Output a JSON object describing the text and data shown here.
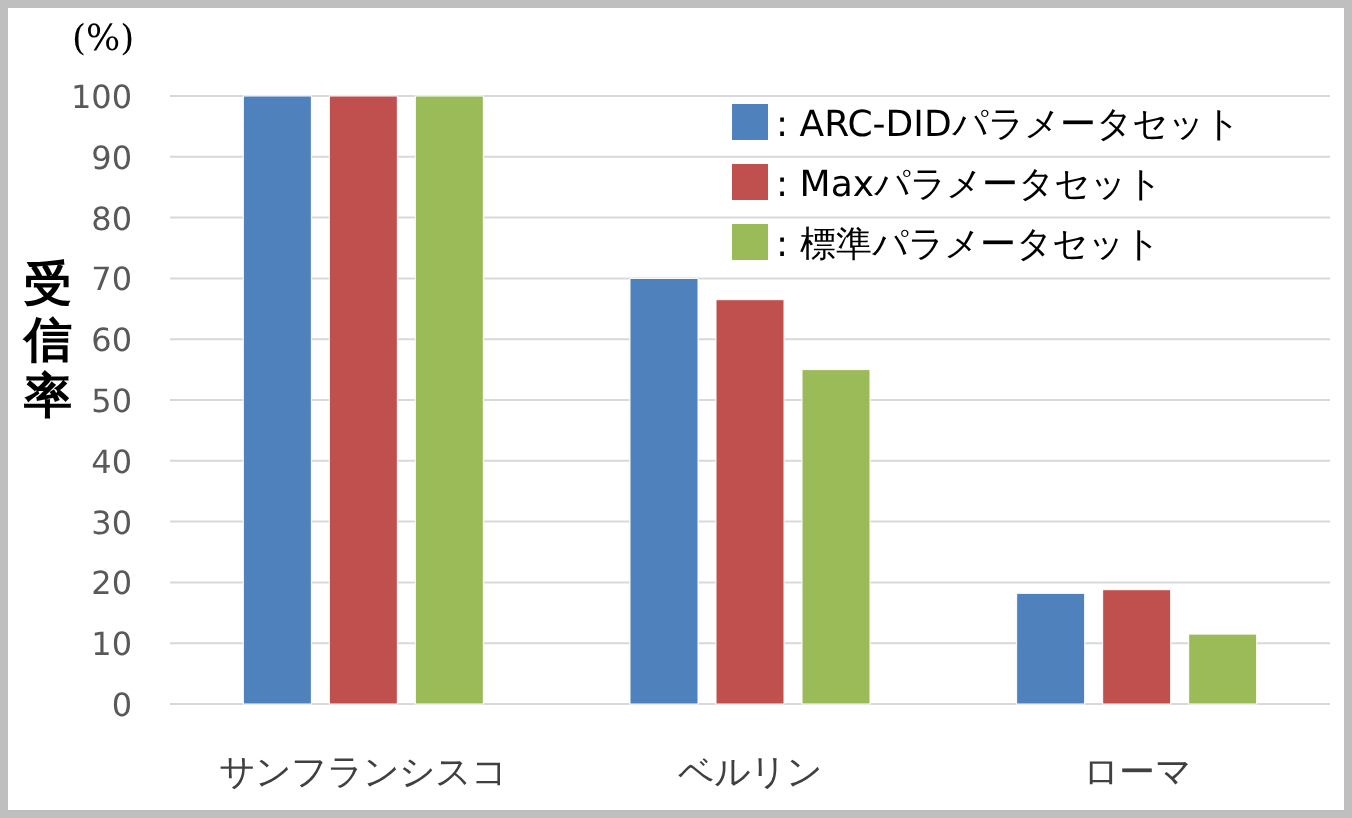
{
  "chart_data": {
    "type": "bar",
    "ylabel": "受信率",
    "annotations": [
      "(%)"
    ],
    "categories": [
      "サンフランシスコ",
      "ベルリン",
      "ローマ"
    ],
    "series": [
      {
        "name": ": ARC-DIDパラメータセット",
        "color": "#4f81bd",
        "values": [
          100,
          70,
          18.2
        ]
      },
      {
        "name": ": Maxパラメータセット",
        "color": "#c0504d",
        "values": [
          100,
          66.5,
          18.8
        ]
      },
      {
        "name": ": 標準パラメータセット",
        "color": "#9bbb59",
        "values": [
          100,
          55,
          11.5
        ]
      }
    ],
    "ylim": [
      0,
      100
    ],
    "yticks": [
      0,
      10,
      20,
      30,
      40,
      50,
      60,
      70,
      80,
      90,
      100
    ],
    "grid": "y",
    "legend": "top right"
  }
}
